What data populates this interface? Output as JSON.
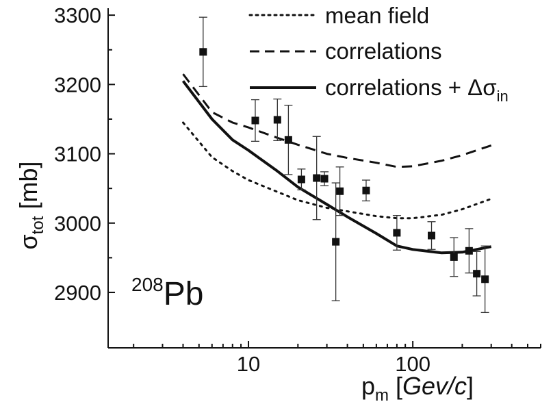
{
  "chart_data": {
    "type": "line",
    "xscale": "log",
    "xlim": [
      1.4,
      600
    ],
    "ylim": [
      2820,
      3310
    ],
    "xticks": [
      10,
      100
    ],
    "xtick_labels": [
      "10",
      "100"
    ],
    "yticks": [
      2900,
      3000,
      3100,
      3200,
      3300
    ],
    "ytick_labels": [
      "2900",
      "3000",
      "3100",
      "3200",
      "3300"
    ],
    "xlabel": {
      "main": "p",
      "sub": "m",
      "rest": " [",
      "italic": "Gev/c",
      "close": "]"
    },
    "ylabel": {
      "main": "σ",
      "sub": "tot",
      "rest": " [mb]"
    },
    "annotation": {
      "sup": "208",
      "text": "Pb"
    },
    "legend_position": "top-right",
    "series": [
      {
        "name": "mean field",
        "style": "dotted",
        "x": [
          4,
          6,
          8,
          10,
          15,
          20,
          30,
          40,
          60,
          80,
          100,
          150,
          200,
          300
        ],
        "y": [
          3145,
          3095,
          3075,
          3062,
          3045,
          3033,
          3022,
          3017,
          3010,
          3007,
          3007,
          3012,
          3020,
          3035
        ]
      },
      {
        "name": "correlations",
        "style": "dashed",
        "x": [
          4,
          6,
          8,
          10,
          15,
          20,
          30,
          40,
          60,
          80,
          100,
          150,
          200,
          300
        ],
        "y": [
          3215,
          3160,
          3145,
          3138,
          3123,
          3113,
          3100,
          3094,
          3087,
          3081,
          3082,
          3090,
          3098,
          3112
        ]
      },
      {
        "name_parts": {
          "text": "correlations + Δσ",
          "sub": "in"
        },
        "style": "solid",
        "x": [
          4,
          6,
          8,
          10,
          15,
          20,
          30,
          40,
          60,
          80,
          100,
          150,
          200,
          300
        ],
        "y": [
          3205,
          3150,
          3120,
          3105,
          3075,
          3052,
          3027,
          3009,
          2985,
          2967,
          2962,
          2957,
          2958,
          2966
        ]
      }
    ],
    "data_points": [
      {
        "x": 5.3,
        "y": 3247,
        "err": 50
      },
      {
        "x": 11,
        "y": 3148,
        "err": 30
      },
      {
        "x": 15,
        "y": 3149,
        "err": 30
      },
      {
        "x": 17.5,
        "y": 3120,
        "err": 50
      },
      {
        "x": 21,
        "y": 3063,
        "err": 15
      },
      {
        "x": 26,
        "y": 3065,
        "err": 60
      },
      {
        "x": 29,
        "y": 3064,
        "err": 10
      },
      {
        "x": 34,
        "y": 2973,
        "err": 85
      },
      {
        "x": 36,
        "y": 3046,
        "err": 35
      },
      {
        "x": 52,
        "y": 3047,
        "err": 15
      },
      {
        "x": 80,
        "y": 2986,
        "err": 25
      },
      {
        "x": 130,
        "y": 2982,
        "err": 20
      },
      {
        "x": 178,
        "y": 2951,
        "err": 28
      },
      {
        "x": 220,
        "y": 2960,
        "err": 32
      },
      {
        "x": 245,
        "y": 2927,
        "err": 32
      },
      {
        "x": 275,
        "y": 2919,
        "err": 48
      }
    ]
  }
}
